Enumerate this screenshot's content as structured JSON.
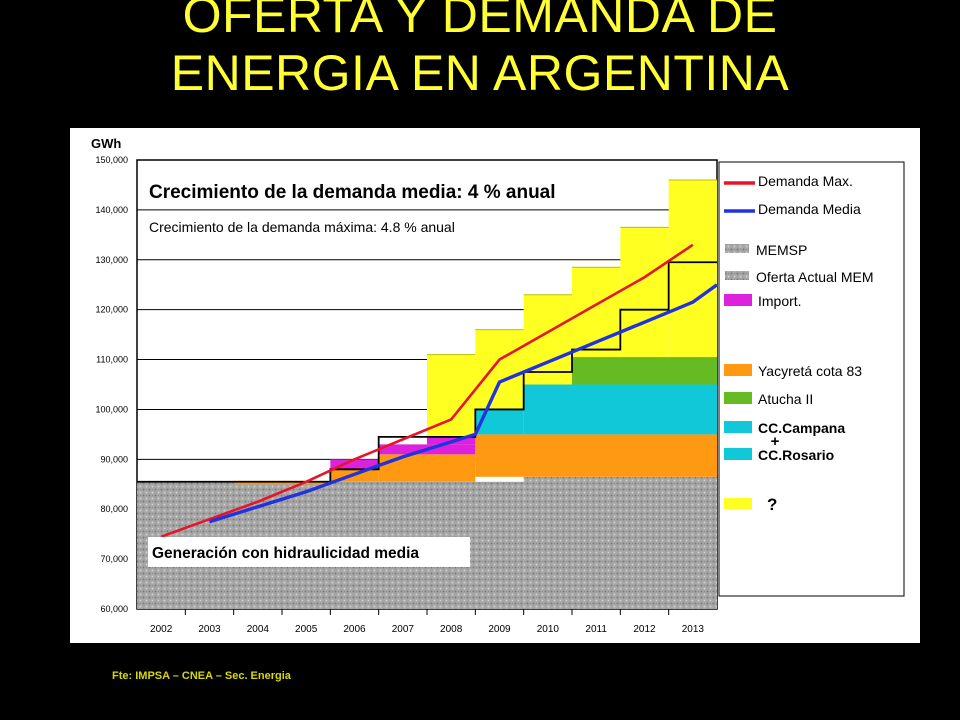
{
  "title": {
    "line1": "OFERTA Y DEMANDA DE",
    "line2": "ENERGIA EN ARGENTINA"
  },
  "source": "Fte: IMPSA – CNEA – Sec. Energia",
  "colors": {
    "title": "#ffff33",
    "demanda_max": "#e8142a",
    "demanda_media": "#2233dd",
    "memsp": "#9a9a9a",
    "import": "#dd22dd",
    "yacyreta": "#ff9912",
    "atucha": "#66bb22",
    "cc": "#10c8d8",
    "unknown": "#ffff22",
    "step_line": "#000000"
  },
  "chart_data": {
    "type": "area",
    "unit_label": "GWh",
    "categories": [
      "2002",
      "2003",
      "2004",
      "2005",
      "2006",
      "2007",
      "2008",
      "2009",
      "2010",
      "2011",
      "2012",
      "2013"
    ],
    "ylim": [
      60000,
      150000
    ],
    "y_ticks": [
      "60,000",
      "70,000",
      "80,000",
      "90,000",
      "100,000",
      "110,000",
      "120,000",
      "130,000",
      "140,000",
      "150,000"
    ],
    "grid": true,
    "legend_position": "right",
    "annotations": {
      "headline_prefix": "Crecimiento de la demanda media",
      "headline_value": ": 4 % anual",
      "subline_prefix": "Crecimiento de la demanda máxima",
      "subline_value": ": 4.8 % anual",
      "base_label": "Generación con hidraulicidad media"
    },
    "legend": [
      {
        "label": "Demanda Max.",
        "kind": "line",
        "color": "#e8142a"
      },
      {
        "label": "Demanda Media",
        "kind": "line",
        "color": "#2233dd"
      },
      {
        "label": "MEMSP",
        "kind": "hatch",
        "color": "#9a9a9a"
      },
      {
        "label": "Oferta Actual MEM",
        "kind": "hatch",
        "color": "#9a9a9a"
      },
      {
        "label": "Import.",
        "kind": "box",
        "color": "#dd22dd"
      },
      {
        "label": "Yacyretá cota 83",
        "kind": "box",
        "color": "#ff9912"
      },
      {
        "label": "Atucha II",
        "kind": "box",
        "color": "#66bb22"
      },
      {
        "label": "CC.Campana",
        "kind": "box",
        "color": "#10c8d8"
      },
      {
        "label": "+",
        "kind": "text"
      },
      {
        "label": "CC.Rosario",
        "kind": "box",
        "color": "#10c8d8"
      },
      {
        "label": "?",
        "kind": "box",
        "color": "#ffff22"
      }
    ],
    "series": [
      {
        "name": "Demanda Max.",
        "type": "line",
        "points": [
          [
            2002.0,
            74500
          ],
          [
            2003.0,
            78000
          ],
          [
            2004.0,
            81500
          ],
          [
            2005.0,
            85500
          ],
          [
            2006.0,
            90000
          ],
          [
            2007.0,
            94000
          ],
          [
            2008.0,
            98000
          ],
          [
            2009.0,
            110000
          ],
          [
            2010.0,
            115500
          ],
          [
            2011.0,
            121000
          ],
          [
            2012.0,
            126500
          ],
          [
            2013.0,
            133000
          ]
        ]
      },
      {
        "name": "Demanda Media",
        "type": "line",
        "points": [
          [
            2003.0,
            77500
          ],
          [
            2004.0,
            80500
          ],
          [
            2005.0,
            83500
          ],
          [
            2006.0,
            87000
          ],
          [
            2007.0,
            90500
          ],
          [
            2008.0,
            93500
          ],
          [
            2008.5,
            95000
          ],
          [
            2009.0,
            105500
          ],
          [
            2010.0,
            109500
          ],
          [
            2011.0,
            113500
          ],
          [
            2012.0,
            117500
          ],
          [
            2013.0,
            121500
          ],
          [
            2013.5,
            125000
          ]
        ]
      },
      {
        "name": "Oferta Actual MEM",
        "type": "band",
        "segments": [
          [
            2001.5,
            2009.5,
            60000,
            85500
          ],
          [
            2009.5,
            2013.5,
            60000,
            86500
          ]
        ]
      },
      {
        "name": "Yacyretá cota 83",
        "type": "band",
        "segments": [
          [
            2003.5,
            2005.5,
            85000,
            85700
          ],
          [
            2005.5,
            2006.5,
            85500,
            88000
          ],
          [
            2006.5,
            2008.5,
            85500,
            91000
          ],
          [
            2008.5,
            2013.5,
            86500,
            95000
          ]
        ]
      },
      {
        "name": "Import.",
        "type": "band",
        "segments": [
          [
            2005.5,
            2006.5,
            88000,
            90000
          ],
          [
            2006.5,
            2008.5,
            91000,
            93000
          ],
          [
            2007.5,
            2008.5,
            93000,
            94500
          ]
        ]
      },
      {
        "name": "CC.Campana + CC.Rosario",
        "type": "band",
        "segments": [
          [
            2008.5,
            2009.5,
            95000,
            100000
          ],
          [
            2009.5,
            2013.5,
            95000,
            105000
          ]
        ]
      },
      {
        "name": "Atucha II",
        "type": "band",
        "segments": [
          [
            2010.5,
            2013.5,
            105000,
            110500
          ]
        ]
      },
      {
        "name": "?",
        "type": "steps",
        "segments": [
          [
            2007.5,
            2008.5,
            94000,
            111000
          ],
          [
            2008.5,
            2009.5,
            100000,
            116000
          ],
          [
            2009.5,
            2010.5,
            105000,
            123000
          ],
          [
            2010.5,
            2011.5,
            110500,
            128500
          ],
          [
            2011.5,
            2012.5,
            110500,
            136500
          ],
          [
            2012.5,
            2013.5,
            110500,
            146000
          ]
        ]
      },
      {
        "name": "Oferta",
        "type": "step-line",
        "points": [
          [
            2001.5,
            85500
          ],
          [
            2005.5,
            85500
          ],
          [
            2005.5,
            88000
          ],
          [
            2006.5,
            88000
          ],
          [
            2006.5,
            94500
          ],
          [
            2008.5,
            94500
          ],
          [
            2008.5,
            100000
          ],
          [
            2009.5,
            100000
          ],
          [
            2009.5,
            107500
          ],
          [
            2010.5,
            107500
          ],
          [
            2010.5,
            112000
          ],
          [
            2011.5,
            112000
          ],
          [
            2011.5,
            120000
          ],
          [
            2012.5,
            120000
          ],
          [
            2012.5,
            129500
          ],
          [
            2013.5,
            129500
          ]
        ]
      }
    ]
  }
}
